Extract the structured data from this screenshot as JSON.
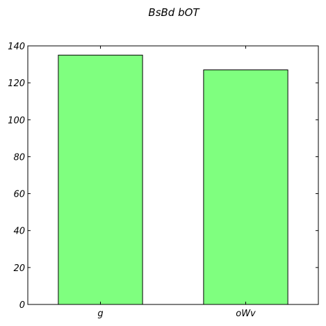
{
  "chart_data": {
    "type": "bar",
    "title": "BsBd bOT",
    "xlabel": "",
    "ylabel": "",
    "categories": [
      "g",
      "oWv"
    ],
    "values": [
      135,
      127
    ],
    "ylim": [
      0,
      140
    ],
    "yticks": [
      0,
      20,
      40,
      60,
      80,
      100,
      120,
      140
    ],
    "bar_color": "#7fff7f",
    "edge_color": "#000000",
    "grid": false,
    "legend": "none"
  }
}
